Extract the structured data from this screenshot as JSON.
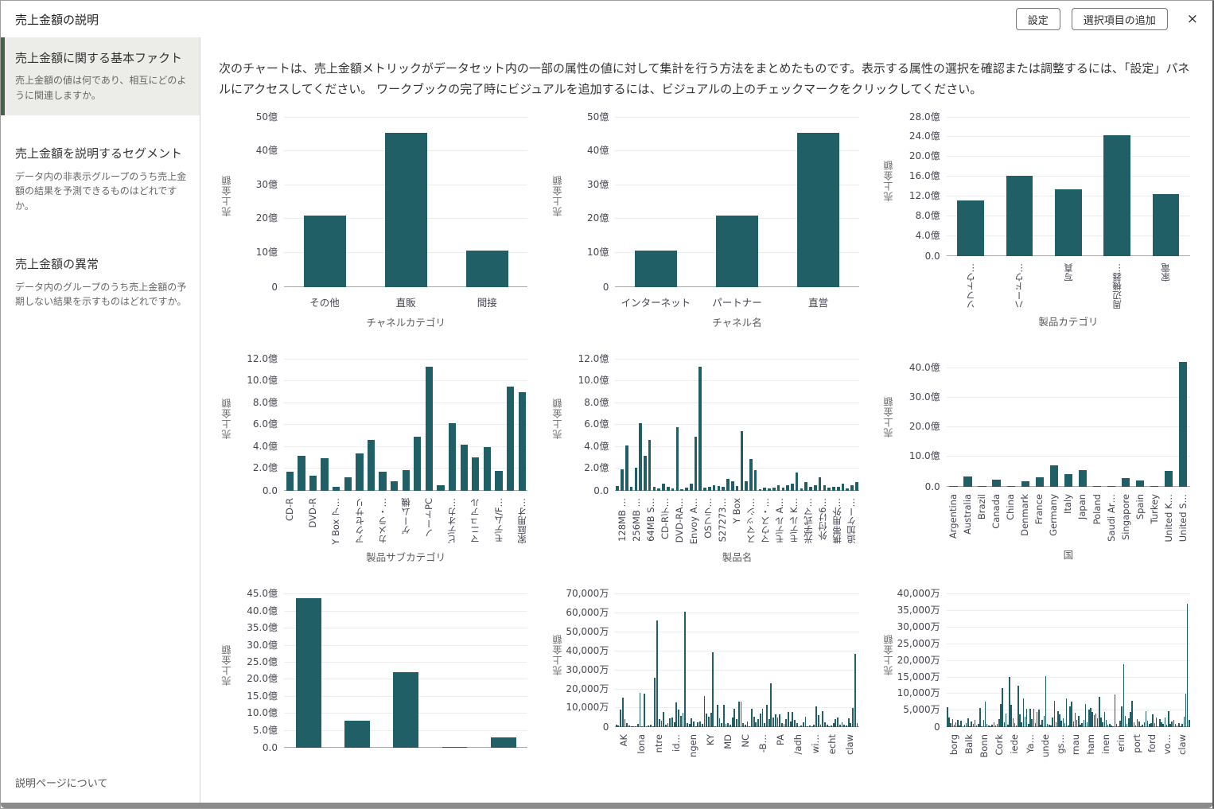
{
  "header": {
    "title": "売上金額の説明",
    "settings_label": "設定",
    "add_selection_label": "選択項目の追加",
    "close_icon": "×"
  },
  "sidebar": {
    "items": [
      {
        "title": "売上金額に関する基本ファクト",
        "desc": "売上金額の値は何であり、相互にどのように関連しますか。",
        "active": true
      },
      {
        "title": "売上金額を説明するセグメント",
        "desc": "データ内の非表示グループのうち売上金額の結果を予測できるものはどれですか。",
        "active": false
      },
      {
        "title": "売上金額の異常",
        "desc": "データ内のグループのうち売上金額の予期しない結果を示すものはどれですか。",
        "active": false
      }
    ],
    "footer_link": "説明ページについて"
  },
  "main": {
    "intro": "次のチャートは、売上金額メトリックがデータセット内の一部の属性の値に対して集計を行う方法をまとめたものです。表示する属性の選択を確認または調整するには、「設定」パネルにアクセスしてください。 ワークブックの完了時にビジュアルを追加するには、ビジュアルの上のチェックマークをクリックしてください。"
  },
  "colors": {
    "bar": "#215f66",
    "accent_green": "#48614a"
  },
  "chart_data": [
    {
      "type": "bar",
      "name": "channel-category-chart",
      "ylabel": "売上金額",
      "xlabel": "チャネルカテゴリ",
      "ytick_labels": [
        "0",
        "10億",
        "20億",
        "30億",
        "40億",
        "50億"
      ],
      "ytick_max": 50,
      "scale_max": 50,
      "categories": [
        "その他",
        "直販",
        "間接"
      ],
      "values": [
        21,
        45.5,
        10.8
      ],
      "x_labels_rotated": false,
      "bar_width_pct": 52
    },
    {
      "type": "bar",
      "name": "channel-name-chart",
      "ylabel": "売上金額",
      "xlabel": "チャネル名",
      "ytick_labels": [
        "0",
        "10億",
        "20億",
        "30億",
        "40億",
        "50億"
      ],
      "ytick_max": 50,
      "scale_max": 50,
      "categories": [
        "インターネット",
        "パートナー",
        "直営"
      ],
      "values": [
        10.8,
        21,
        45.5
      ],
      "x_labels_rotated": false,
      "bar_width_pct": 52
    },
    {
      "type": "bar",
      "name": "product-category-chart",
      "ylabel": "売上金額",
      "xlabel": "製品カテゴリ",
      "ytick_labels": [
        "0.0",
        "4.0億",
        "8.0億",
        "12.0億",
        "16.0億",
        "20.0億",
        "24.0億",
        "28.0億"
      ],
      "ytick_max": 28,
      "scale_max": 28,
      "categories": [
        "ソフトウ…",
        "ハードウ…",
        "写真",
        "周辺機器…",
        "家電"
      ],
      "values": [
        11.2,
        16.2,
        13.4,
        24.4,
        12.4
      ],
      "x_labels_rotated": true,
      "bar_width_pct": 55
    },
    {
      "type": "bar",
      "name": "product-subcategory-chart",
      "ylabel": "売上金額",
      "xlabel": "製品サブカテゴリ",
      "ytick_labels": [
        "0.0",
        "2.0億",
        "4.0億",
        "6.0億",
        "8.0億",
        "10.0億",
        "12.0億"
      ],
      "ytick_max": 12,
      "scale_max": 12,
      "categories": [
        "CD-R",
        "",
        "DVD-R",
        "",
        "Y Box ア…",
        "",
        "アクセサリ",
        "",
        "カメラ・…",
        "",
        "ゲーム機",
        "",
        "ノートPC",
        "",
        "ビデオカ…",
        "",
        "マニュアル",
        "",
        "モデム/F…",
        "",
        "家庭用オ…"
      ],
      "values": [
        1.7,
        3.2,
        1.35,
        2.95,
        0.3,
        1.2,
        3.35,
        4.65,
        1.7,
        0.85,
        1.85,
        4.9,
        11.3,
        0.5,
        6.15,
        4.15,
        3.05,
        4.0,
        1.75,
        9.5,
        9.0
      ],
      "x_labels_rotated": true,
      "bar_width_pct": 64
    },
    {
      "type": "bar",
      "name": "product-name-chart",
      "ylabel": "売上金額",
      "xlabel": "製品名",
      "ytick_labels": [
        "0.0",
        "2.0億",
        "4.0億",
        "6.0億",
        "8.0億",
        "10.0億",
        "12.0億"
      ],
      "ytick_max": 12,
      "scale_max": 12,
      "sparse_labels": [
        "128MB …",
        "256MB …",
        "64MB S…",
        "CD-Rデ…",
        "DVD-RA…",
        "Envoy A…",
        "OSフラ…",
        "S27273…",
        "Y Box",
        "スマッシ…",
        "マウス・…",
        "モデル A…",
        "モデル K…",
        "光学式マ…",
        "外付け6…",
        "携帯用外…",
        "追加ケー…"
      ],
      "values": [
        0.4,
        1.95,
        4.1,
        0.35,
        2.05,
        6.15,
        3.2,
        4.65,
        0.3,
        0.2,
        0.65,
        0.3,
        0.15,
        5.8,
        0.1,
        0.25,
        0.6,
        4.9,
        11.3,
        0.25,
        0.3,
        0.45,
        0.4,
        0.35,
        1.05,
        0.85,
        0.4,
        5.4,
        0.85,
        2.9,
        1.85,
        0.1,
        0.25,
        0.15,
        0.25,
        0.45,
        0.25,
        0.45,
        0.65,
        1.65,
        0.2,
        0.75,
        0.3,
        0.45,
        1.2,
        0.45,
        0.25,
        0.3,
        0.35,
        0.65,
        0.2,
        0.45,
        0.8
      ],
      "x_labels_rotated": true,
      "bar_width_pct": 62
    },
    {
      "type": "bar",
      "name": "country-chart",
      "ylabel": "売上金額",
      "xlabel": "国",
      "ytick_labels": [
        "0.0",
        "10.0億",
        "20.0億",
        "30.0億",
        "40.0億"
      ],
      "ytick_max": 40,
      "scale_max": 43,
      "categories": [
        "Argentina",
        "Australia",
        "Brazil",
        "Canada",
        "China",
        "Denmark",
        "France",
        "Germany",
        "Italy",
        "Japan",
        "Poland",
        "Saudi Ar…",
        "Singapore",
        "Spain",
        "Turkey",
        "United K…",
        "United S…"
      ],
      "values": [
        0.05,
        3.3,
        0.07,
        2.3,
        0.06,
        1.7,
        3.2,
        7.2,
        4.2,
        5.6,
        0.05,
        0.12,
        2.7,
        1.9,
        0.06,
        5.2,
        42
      ],
      "x_labels_rotated": true,
      "bar_width_pct": 58
    },
    {
      "type": "bar",
      "name": "region-chart",
      "ylabel": "売上金額",
      "xlabel": "",
      "ytick_labels": [
        "0.0",
        "5.0億",
        "10.0億",
        "15.0億",
        "20.0億",
        "25.0億",
        "30.0億",
        "35.0億",
        "40.0億",
        "45.0億"
      ],
      "ytick_max": 45,
      "scale_max": 45,
      "values": [
        44,
        8,
        22.3,
        0.05,
        3.2
      ],
      "x_labels_rotated": false,
      "bar_width_pct": 52
    },
    {
      "type": "bar",
      "name": "state-chart",
      "ylabel": "売上金額",
      "xlabel": "",
      "ytick_labels": [
        "0",
        "10,000万",
        "20,000万",
        "30,000万",
        "40,000万",
        "50,000万",
        "60,000万",
        "70,000万"
      ],
      "ytick_max": 70000,
      "scale_max": 70000,
      "sparse_labels": [
        "AK",
        "lona",
        "ntre",
        "id…",
        "ngen",
        "KY",
        "MD",
        "NC",
        "-B…",
        "PA",
        "/adh",
        "wi…",
        "echt",
        "claw"
      ],
      "values": [
        1500,
        800,
        9300,
        15500,
        4300,
        2200,
        900,
        600,
        300,
        500,
        1800,
        18000,
        600,
        17800,
        400,
        900,
        1200,
        600,
        25900,
        56200,
        4200,
        3500,
        8200,
        1500,
        2100,
        4800,
        5300,
        2600,
        12900,
        9200,
        6100,
        7700,
        61000,
        2300,
        1800,
        4500,
        2900,
        400,
        2500,
        3200,
        1700,
        16400,
        7300,
        5700,
        7800,
        39300,
        500,
        11800,
        4900,
        2100,
        11900,
        1700,
        2400,
        1200,
        5200,
        9800,
        4300,
        13500,
        13700,
        2100,
        1500,
        3200,
        700,
        9700,
        5600,
        2600,
        4300,
        7300,
        9900,
        2100,
        11900,
        4100,
        23000,
        5100,
        6800,
        5300,
        6700,
        2400,
        1700,
        4400,
        8100,
        2900,
        8100,
        3900,
        2300,
        600,
        1100,
        2600,
        5500,
        700,
        900,
        400,
        1300,
        11200,
        6400,
        1500,
        8600,
        2800,
        1300,
        700,
        1100,
        2300,
        4200,
        5100,
        1300,
        2800,
        1500,
        800,
        4800,
        2100,
        10000,
        38800,
        2300
      ],
      "x_labels_rotated": true,
      "bar_width_pct": 68
    },
    {
      "type": "bar",
      "name": "city-chart",
      "ylabel": "売上金額",
      "xlabel": "",
      "ytick_labels": [
        "0",
        "5,000万",
        "10,000万",
        "15,000万",
        "20,000万",
        "25,000万",
        "30,000万",
        "35,000万",
        "40,000万"
      ],
      "ytick_max": 40000,
      "scale_max": 40000,
      "sparse_labels": [
        "borg",
        "Balk",
        "Bonn",
        "Cork",
        "iede",
        "Ya…",
        "unde",
        "gs…",
        "rnau",
        "ham",
        "inen",
        "erin",
        "port",
        "ford",
        "vo…",
        "claw"
      ],
      "values": [
        6100,
        3000,
        1200,
        2500,
        800,
        1500,
        2200,
        600,
        1900,
        400,
        800,
        1200,
        2600,
        400,
        1700,
        900,
        2300,
        600,
        1100,
        5800,
        400,
        2100,
        7800,
        900,
        500,
        300,
        700,
        1400,
        600,
        900,
        2400,
        7100,
        11800,
        1500,
        4200,
        800,
        15200,
        6800,
        2600,
        1200,
        600,
        12600,
        4000,
        1600,
        8700,
        3100,
        5500,
        1000,
        5600,
        2500,
        5500,
        1200,
        4700,
        5300,
        800,
        2300,
        3500,
        15500,
        1100,
        700,
        500,
        2900,
        8000,
        1400,
        4800,
        3900,
        2000,
        2600,
        1300,
        8700,
        500,
        6300,
        7800,
        1800,
        4400,
        2300,
        3300,
        700,
        1200,
        2200,
        6900,
        1500,
        5400,
        5900,
        4500,
        3700,
        4100,
        2700,
        9200,
        2900,
        1500,
        4700,
        2100,
        800,
        1100,
        600,
        300,
        9900,
        1000,
        400,
        1900,
        6300,
        19000,
        3400,
        1000,
        2800,
        4600,
        8000,
        1400,
        600,
        2400,
        1800,
        400,
        700,
        1600,
        4900,
        2000,
        900,
        1300,
        3800,
        1200,
        2900,
        400,
        2500,
        1600,
        1000,
        3000,
        700,
        4900,
        1100,
        1700,
        2100,
        900,
        600,
        1200,
        400,
        900,
        3100,
        10200,
        37200,
        2100
      ],
      "x_labels_rotated": true,
      "bar_width_pct": 70
    }
  ]
}
